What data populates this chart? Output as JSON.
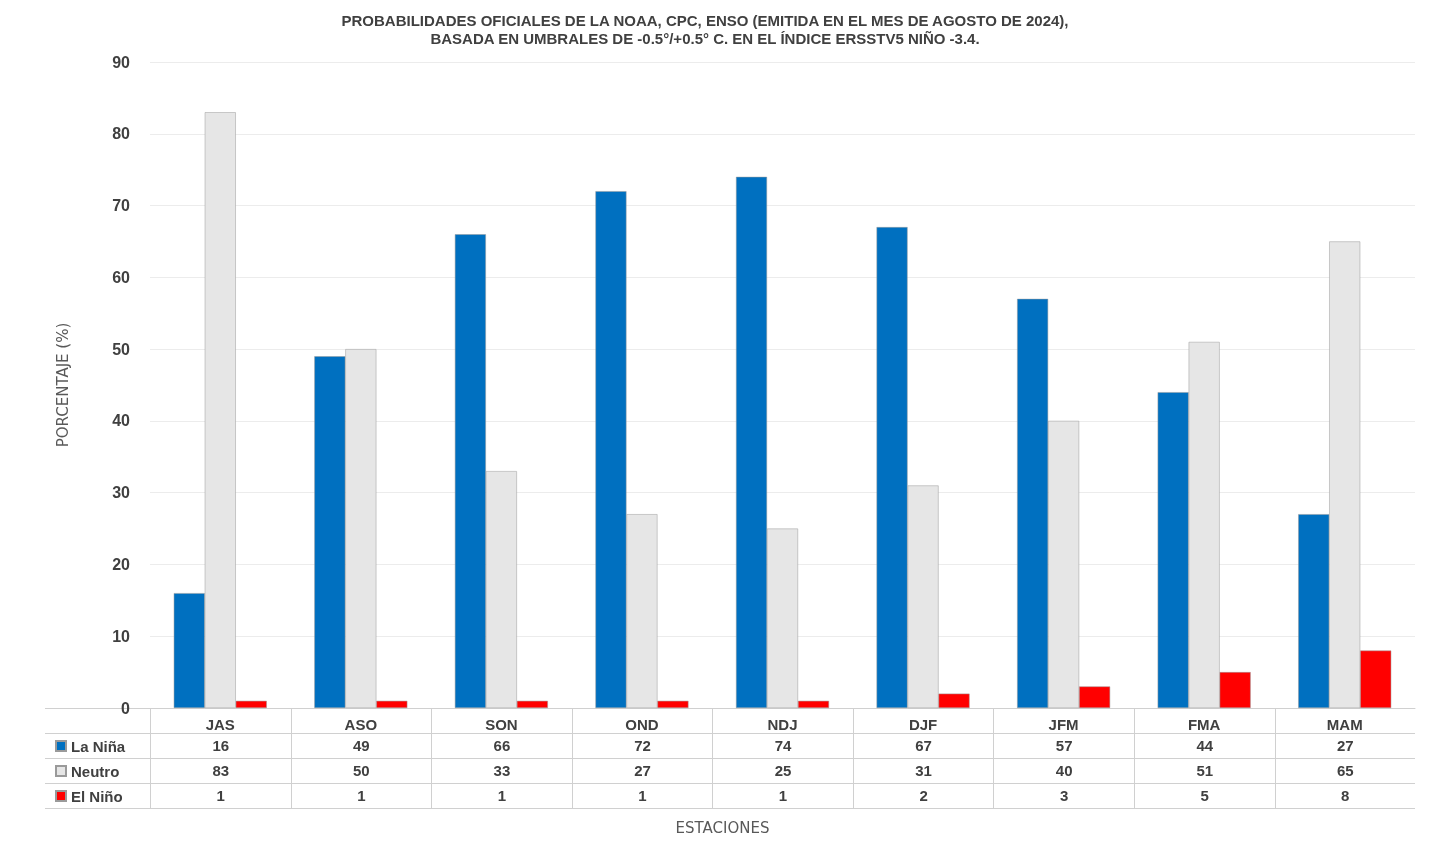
{
  "chart_data": {
    "type": "bar",
    "title": "PROBABILIDADES OFICIALES DE LA NOAA, CPC, ENSO (EMITIDA EN EL MES DE AGOSTO DE 2024),\nBASADA EN UMBRALES DE -0.5°/+0.5° C. EN EL ÍNDICE ERSSTV5 NIÑO -3.4.",
    "annotations": [
      "ESTACIONES"
    ],
    "ylabel": "PORCENTAJE (%)",
    "categories": [
      "JAS",
      "ASO",
      "SON",
      "OND",
      "NDJ",
      "DJF",
      "JFM",
      "FMA",
      "MAM"
    ],
    "series": [
      {
        "name": "La Niña",
        "color": "#0070c0",
        "values": [
          16,
          49,
          66,
          72,
          74,
          67,
          57,
          44,
          27
        ]
      },
      {
        "name": "Neutro",
        "color": "#e6e6e6",
        "values": [
          83,
          50,
          33,
          27,
          25,
          31,
          40,
          51,
          65
        ]
      },
      {
        "name": "El Niño",
        "color": "#ff0000",
        "values": [
          1,
          1,
          1,
          1,
          1,
          2,
          3,
          5,
          8
        ]
      }
    ],
    "ylim": [
      0,
      90
    ],
    "yticks": [
      0,
      10,
      20,
      30,
      40,
      50,
      60,
      70,
      80,
      90
    ],
    "grid": "y",
    "legend": "bottom left",
    "data_labels": true
  }
}
